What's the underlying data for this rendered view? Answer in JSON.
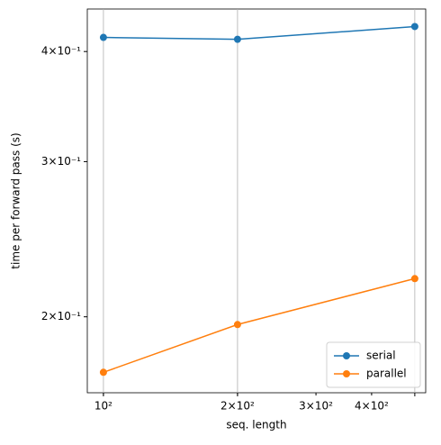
{
  "chart_data": {
    "type": "line",
    "xlabel": "seq. length",
    "ylabel": "time per forward pass (s)",
    "x": [
      100,
      200,
      500
    ],
    "series": [
      {
        "name": "serial",
        "color": "#1f77b4",
        "values": [
          0.415,
          0.413,
          0.427
        ]
      },
      {
        "name": "parallel",
        "color": "#ff7f0e",
        "values": [
          0.173,
          0.196,
          0.221
        ]
      }
    ],
    "xscale": "log",
    "yscale": "log",
    "xlim": [
      92,
      529
    ],
    "ylim": [
      0.164,
      0.447
    ],
    "xticks": [
      {
        "value": 100,
        "label": "10²"
      },
      {
        "value": 200,
        "label": "2×10²"
      },
      {
        "value": 300,
        "label": "3×10²"
      },
      {
        "value": 400,
        "label": "4×10²"
      }
    ],
    "xgrid": [
      100,
      200,
      500
    ],
    "yticks": [
      {
        "value": 0.2,
        "label": "2×10⁻¹"
      },
      {
        "value": 0.3,
        "label": "3×10⁻¹"
      },
      {
        "value": 0.4,
        "label": "4×10⁻¹"
      }
    ],
    "legend": "lower right"
  }
}
